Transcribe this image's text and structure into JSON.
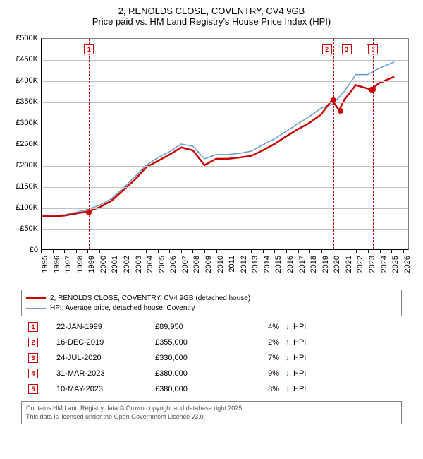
{
  "title": {
    "line1": "2, RENOLDS CLOSE, COVENTRY, CV4 9GB",
    "line2": "Price paid vs. HM Land Registry's House Price Index (HPI)"
  },
  "chart": {
    "type": "line",
    "background_color": "#ffffff",
    "grid_color": "#c0c0c0",
    "axis_color": "#000000",
    "label_fontsize": 11,
    "x": {
      "min": 1995,
      "max": 2026.5,
      "tick_step": 1,
      "ticks": [
        1995,
        1996,
        1997,
        1998,
        1999,
        2000,
        2001,
        2002,
        2003,
        2004,
        2005,
        2006,
        2007,
        2008,
        2009,
        2010,
        2011,
        2012,
        2013,
        2014,
        2015,
        2016,
        2017,
        2018,
        2019,
        2020,
        2021,
        2022,
        2023,
        2024,
        2025,
        2026
      ]
    },
    "y": {
      "min": 0,
      "max": 500000,
      "tick_step": 50000,
      "prefix": "£",
      "suffix": "K",
      "ticks": [
        0,
        50000,
        100000,
        150000,
        200000,
        250000,
        300000,
        350000,
        400000,
        450000,
        500000
      ]
    },
    "series": [
      {
        "name": "2, RENOLDS CLOSE, COVENTRY, CV4 9GB (detached house)",
        "color": "#cc0000",
        "width": 2.5,
        "points": [
          [
            1995,
            78000
          ],
          [
            1996,
            78000
          ],
          [
            1997,
            80000
          ],
          [
            1998,
            85000
          ],
          [
            1999,
            89950
          ],
          [
            2000,
            100000
          ],
          [
            2001,
            115000
          ],
          [
            2002,
            140000
          ],
          [
            2003,
            165000
          ],
          [
            2004,
            195000
          ],
          [
            2005,
            210000
          ],
          [
            2006,
            225000
          ],
          [
            2007,
            242000
          ],
          [
            2008,
            235000
          ],
          [
            2009,
            200000
          ],
          [
            2010,
            215000
          ],
          [
            2011,
            215000
          ],
          [
            2012,
            218000
          ],
          [
            2013,
            222000
          ],
          [
            2014,
            235000
          ],
          [
            2015,
            250000
          ],
          [
            2016,
            268000
          ],
          [
            2017,
            285000
          ],
          [
            2018,
            300000
          ],
          [
            2019,
            320000
          ],
          [
            2019.96,
            355000
          ],
          [
            2020.56,
            330000
          ],
          [
            2021,
            355000
          ],
          [
            2022,
            390000
          ],
          [
            2023.25,
            380000
          ],
          [
            2023.36,
            380000
          ],
          [
            2024,
            395000
          ],
          [
            2025.3,
            410000
          ]
        ]
      },
      {
        "name": "HPI: Average price, detached house, Coventry",
        "color": "#6699cc",
        "width": 1.5,
        "points": [
          [
            1995,
            80000
          ],
          [
            1996,
            80000
          ],
          [
            1997,
            82000
          ],
          [
            1998,
            88000
          ],
          [
            1999,
            95000
          ],
          [
            2000,
            105000
          ],
          [
            2001,
            120000
          ],
          [
            2002,
            145000
          ],
          [
            2003,
            172000
          ],
          [
            2004,
            200000
          ],
          [
            2005,
            218000
          ],
          [
            2006,
            232000
          ],
          [
            2007,
            250000
          ],
          [
            2008,
            245000
          ],
          [
            2009,
            215000
          ],
          [
            2010,
            225000
          ],
          [
            2011,
            225000
          ],
          [
            2012,
            228000
          ],
          [
            2013,
            233000
          ],
          [
            2014,
            248000
          ],
          [
            2015,
            262000
          ],
          [
            2016,
            280000
          ],
          [
            2017,
            298000
          ],
          [
            2018,
            315000
          ],
          [
            2019,
            335000
          ],
          [
            2020,
            345000
          ],
          [
            2021,
            375000
          ],
          [
            2022,
            415000
          ],
          [
            2023,
            415000
          ],
          [
            2024,
            430000
          ],
          [
            2025.3,
            445000
          ]
        ]
      }
    ],
    "sale_markers": [
      {
        "n": 1,
        "x": 1999.06,
        "y": 89950
      },
      {
        "n": 2,
        "x": 2019.96,
        "y": 355000
      },
      {
        "n": 3,
        "x": 2020.56,
        "y": 330000
      },
      {
        "n": 4,
        "x": 2023.25,
        "y": 380000
      },
      {
        "n": 5,
        "x": 2023.36,
        "y": 380000
      }
    ],
    "vline_color": "#cc0000"
  },
  "legend": {
    "rows": [
      {
        "color": "#cc0000",
        "width": 2.5,
        "label": "2, RENOLDS CLOSE, COVENTRY, CV4 9GB (detached house)"
      },
      {
        "color": "#6699cc",
        "width": 1.5,
        "label": "HPI: Average price, detached house, Coventry"
      }
    ]
  },
  "sales": [
    {
      "n": 1,
      "date": "22-JAN-1999",
      "price": "£89,950",
      "pct": "4%",
      "arrow": "↓",
      "arrow_color": "#006600"
    },
    {
      "n": 2,
      "date": "16-DEC-2019",
      "price": "£355,000",
      "pct": "2%",
      "arrow": "↑",
      "arrow_color": "#cc0000"
    },
    {
      "n": 3,
      "date": "24-JUL-2020",
      "price": "£330,000",
      "pct": "7%",
      "arrow": "↓",
      "arrow_color": "#006600"
    },
    {
      "n": 4,
      "date": "31-MAR-2023",
      "price": "£380,000",
      "pct": "9%",
      "arrow": "↓",
      "arrow_color": "#006600"
    },
    {
      "n": 5,
      "date": "10-MAY-2023",
      "price": "£380,000",
      "pct": "8%",
      "arrow": "↓",
      "arrow_color": "#006600"
    }
  ],
  "hpi_label": "HPI",
  "footer": {
    "line1": "Contains HM Land Registry data © Crown copyright and database right 2025.",
    "line2": "This data is licensed under the Open Government Licence v3.0."
  }
}
